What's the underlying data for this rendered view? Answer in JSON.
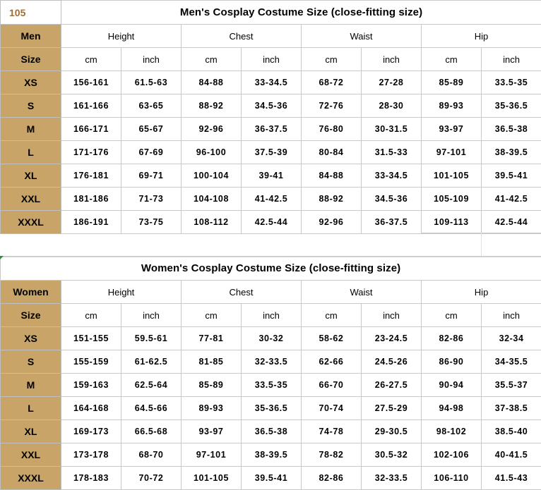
{
  "sheet_number": "105",
  "columns": {
    "groups": [
      "Height",
      "Chest",
      "Waist",
      "Hip"
    ],
    "units": [
      "cm",
      "inch"
    ]
  },
  "men": {
    "title": "Men's Cosplay Costume Size (close-fitting size)",
    "header_label": "Men",
    "size_label": "Size",
    "rows": [
      {
        "size": "XS",
        "values": [
          "156-161",
          "61.5-63",
          "84-88",
          "33-34.5",
          "68-72",
          "27-28",
          "85-89",
          "33.5-35"
        ]
      },
      {
        "size": "S",
        "values": [
          "161-166",
          "63-65",
          "88-92",
          "34.5-36",
          "72-76",
          "28-30",
          "89-93",
          "35-36.5"
        ]
      },
      {
        "size": "M",
        "values": [
          "166-171",
          "65-67",
          "92-96",
          "36-37.5",
          "76-80",
          "30-31.5",
          "93-97",
          "36.5-38"
        ]
      },
      {
        "size": "L",
        "values": [
          "171-176",
          "67-69",
          "96-100",
          "37.5-39",
          "80-84",
          "31.5-33",
          "97-101",
          "38-39.5"
        ]
      },
      {
        "size": "XL",
        "values": [
          "176-181",
          "69-71",
          "100-104",
          "39-41",
          "84-88",
          "33-34.5",
          "101-105",
          "39.5-41"
        ]
      },
      {
        "size": "XXL",
        "values": [
          "181-186",
          "71-73",
          "104-108",
          "41-42.5",
          "88-92",
          "34.5-36",
          "105-109",
          "41-42.5"
        ]
      },
      {
        "size": "XXXL",
        "values": [
          "186-191",
          "73-75",
          "108-112",
          "42.5-44",
          "92-96",
          "36-37.5",
          "109-113",
          "42.5-44"
        ]
      }
    ]
  },
  "women": {
    "title": "Women's Cosplay Costume Size (close-fitting size)",
    "header_label": "Women",
    "size_label": "Size",
    "rows": [
      {
        "size": "XS",
        "values": [
          "151-155",
          "59.5-61",
          "77-81",
          "30-32",
          "58-62",
          "23-24.5",
          "82-86",
          "32-34"
        ]
      },
      {
        "size": "S",
        "values": [
          "155-159",
          "61-62.5",
          "81-85",
          "32-33.5",
          "62-66",
          "24.5-26",
          "86-90",
          "34-35.5"
        ]
      },
      {
        "size": "M",
        "values": [
          "159-163",
          "62.5-64",
          "85-89",
          "33.5-35",
          "66-70",
          "26-27.5",
          "90-94",
          "35.5-37"
        ]
      },
      {
        "size": "L",
        "values": [
          "164-168",
          "64.5-66",
          "89-93",
          "35-36.5",
          "70-74",
          "27.5-29",
          "94-98",
          "37-38.5"
        ]
      },
      {
        "size": "XL",
        "values": [
          "169-173",
          "66.5-68",
          "93-97",
          "36.5-38",
          "74-78",
          "29-30.5",
          "98-102",
          "38.5-40"
        ]
      },
      {
        "size": "XXL",
        "values": [
          "173-178",
          "68-70",
          "97-101",
          "38-39.5",
          "78-82",
          "30.5-32",
          "102-106",
          "40-41.5"
        ]
      },
      {
        "size": "XXXL",
        "values": [
          "178-183",
          "70-72",
          "101-105",
          "39.5-41",
          "82-86",
          "32-33.5",
          "106-110",
          "41.5-43"
        ]
      }
    ]
  }
}
